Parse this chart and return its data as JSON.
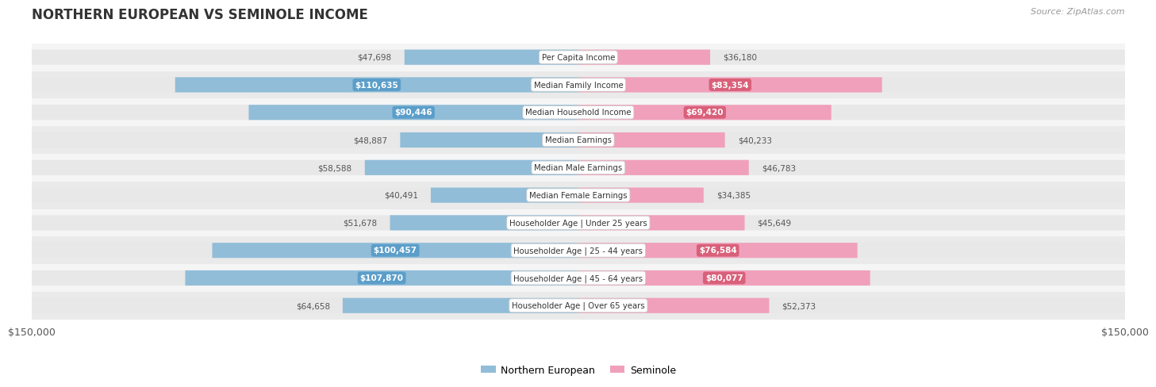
{
  "title": "NORTHERN EUROPEAN VS SEMINOLE INCOME",
  "source": "Source: ZipAtlas.com",
  "categories": [
    "Per Capita Income",
    "Median Family Income",
    "Median Household Income",
    "Median Earnings",
    "Median Male Earnings",
    "Median Female Earnings",
    "Householder Age | Under 25 years",
    "Householder Age | 25 - 44 years",
    "Householder Age | 45 - 64 years",
    "Householder Age | Over 65 years"
  ],
  "northern_european": [
    47698,
    110635,
    90446,
    48887,
    58588,
    40491,
    51678,
    100457,
    107870,
    64658
  ],
  "seminole": [
    36180,
    83354,
    69420,
    40233,
    46783,
    34385,
    45649,
    76584,
    80077,
    52373
  ],
  "max_val": 150000,
  "ne_color": "#91BDD8",
  "ne_color_dark": "#5B9EC9",
  "sem_color": "#F0A0BA",
  "sem_color_dark": "#D9607A",
  "bg_figure": "#FFFFFF",
  "bar_height": 0.55,
  "track_color": "#E8E8E8",
  "row_colors": [
    "#F5F5F5",
    "#EAEAEA"
  ],
  "label_outside_color": "#555555",
  "center_label_bg": "#FFFFFF",
  "center_label_border": "#CCCCCC",
  "ne_inside_threshold": 65000,
  "sem_inside_threshold": 58000
}
